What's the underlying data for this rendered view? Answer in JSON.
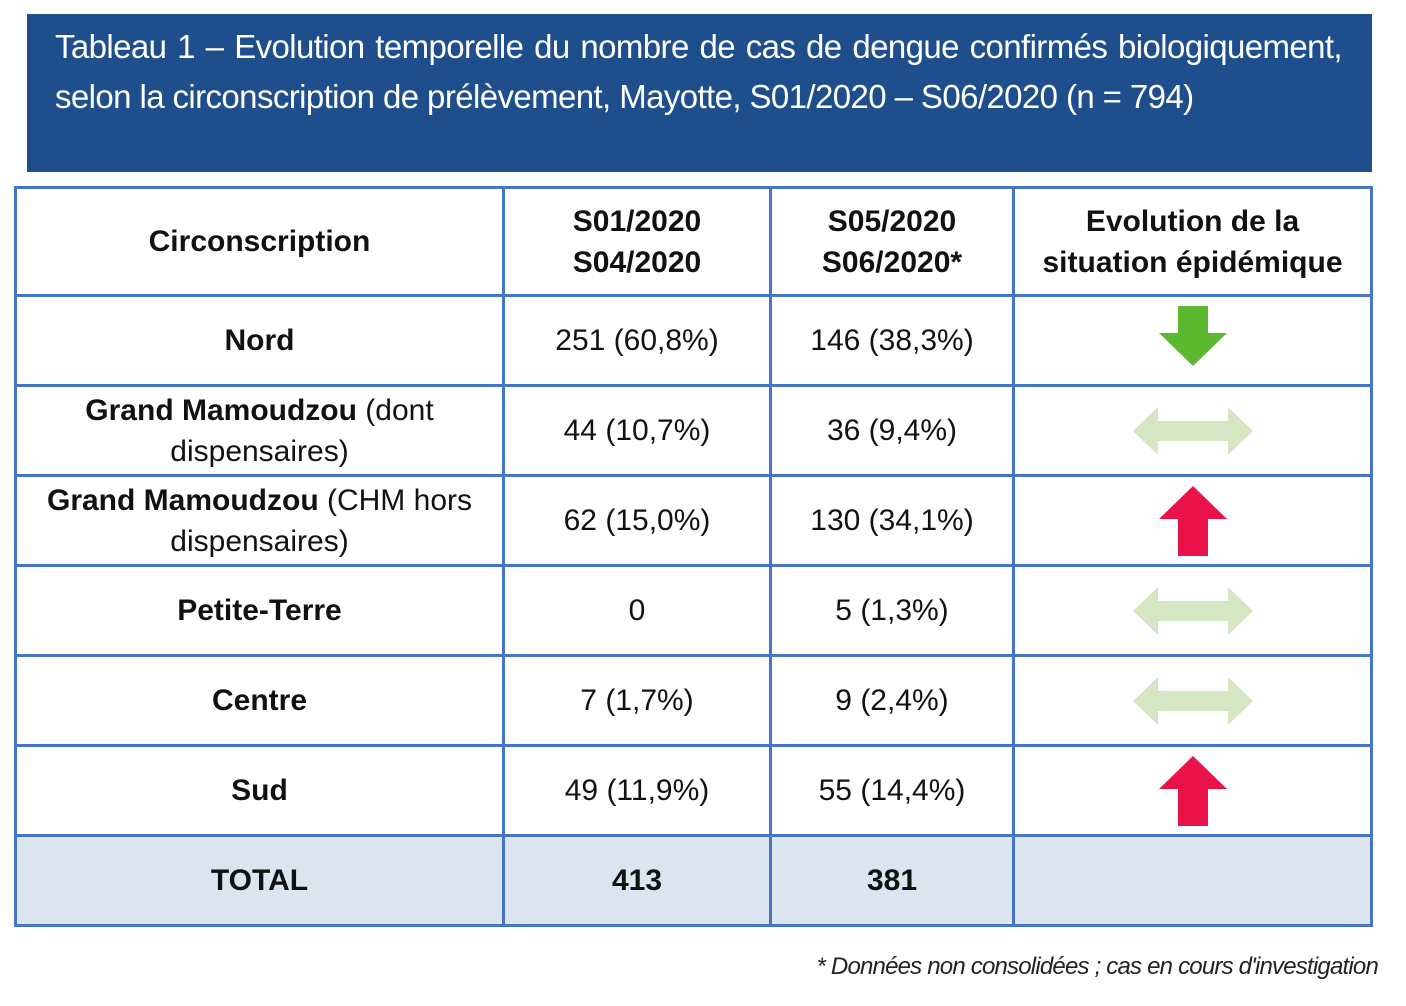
{
  "header": {
    "title": "Tableau 1 – Evolution temporelle du nombre de cas de dengue confirmés biologiquement, selon la circonscription de prélèvement, Mayotte, S01/2020 – S06/2020 (n = 794)"
  },
  "table": {
    "columns": [
      [
        "Circonscription"
      ],
      [
        "S01/2020",
        "S04/2020"
      ],
      [
        "S05/2020",
        "S06/2020*"
      ],
      [
        "Evolution de la",
        "situation épidémique"
      ]
    ],
    "rows": [
      {
        "name": "Nord",
        "period1": "251 (60,8%)",
        "period2": "146 (38,3%)",
        "trend": "down",
        "color": "#5cb82e"
      },
      {
        "name": "Grand Mamoudzou",
        "detail": "(dont dispensaires)",
        "period1": "44 (10,7%)",
        "period2": "36 (9,4%)",
        "trend": "stable",
        "color": "#d5e6c2"
      },
      {
        "name": "Grand Mamoudzou",
        "detail": "(CHM hors dispensaires)",
        "period1": "62 (15,0%)",
        "period2": "130 (34,1%)",
        "trend": "up",
        "color": "#ea1349"
      },
      {
        "name": "Petite-Terre",
        "period1": "0",
        "period2": "5 (1,3%)",
        "trend": "stable",
        "color": "#d5e6c2"
      },
      {
        "name": "Centre",
        "period1": "7 (1,7%)",
        "period2": "9 (2,4%)",
        "trend": "stable",
        "color": "#d5e6c2"
      },
      {
        "name": "Sud",
        "period1": "49 (11,9%)",
        "period2": "55 (14,4%)",
        "trend": "up",
        "color": "#ea1349"
      }
    ],
    "total": {
      "name": "TOTAL",
      "period1": "413",
      "period2": "381"
    }
  },
  "footnote": "* Données non consolidées ; cas en cours d'investigation"
}
